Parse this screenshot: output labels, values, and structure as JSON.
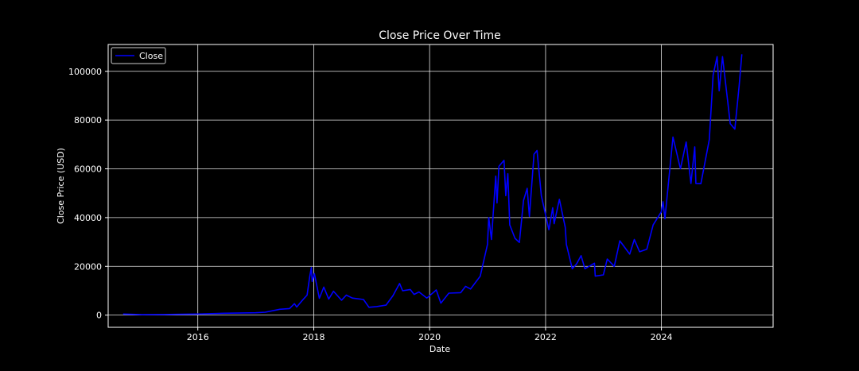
{
  "chart_data": {
    "type": "line",
    "title": "Close Price Over Time",
    "xlabel": "Date",
    "ylabel": "Close Price (USD)",
    "xlim": [
      "2014-06-15",
      "2025-12-05"
    ],
    "ylim": [
      -5000,
      111000
    ],
    "x_ticks": [
      "2016",
      "2018",
      "2020",
      "2022",
      "2024"
    ],
    "y_ticks": [
      0,
      20000,
      40000,
      60000,
      80000,
      100000
    ],
    "grid": true,
    "legend_placement": "top-left",
    "colors": {
      "background": "#000000",
      "line": "#0000ff",
      "text": "#ffffff",
      "grid": "#ffffff"
    },
    "series": [
      {
        "name": "Close",
        "points": [
          [
            "2014-09-17",
            457
          ],
          [
            "2015-01-14",
            178
          ],
          [
            "2015-06-01",
            230
          ],
          [
            "2015-11-04",
            400
          ],
          [
            "2016-01-01",
            430
          ],
          [
            "2016-06-18",
            760
          ],
          [
            "2016-12-31",
            960
          ],
          [
            "2017-03-01",
            1190
          ],
          [
            "2017-06-01",
            2400
          ],
          [
            "2017-08-01",
            2700
          ],
          [
            "2017-09-01",
            4700
          ],
          [
            "2017-09-15",
            3300
          ],
          [
            "2017-10-20",
            6000
          ],
          [
            "2017-11-20",
            8200
          ],
          [
            "2017-12-07",
            16000
          ],
          [
            "2017-12-17",
            19500
          ],
          [
            "2017-12-22",
            13800
          ],
          [
            "2018-01-05",
            17000
          ],
          [
            "2018-02-05",
            6900
          ],
          [
            "2018-03-05",
            11500
          ],
          [
            "2018-04-05",
            6600
          ],
          [
            "2018-05-05",
            9800
          ],
          [
            "2018-06-25",
            6100
          ],
          [
            "2018-07-25",
            8200
          ],
          [
            "2018-09-01",
            7000
          ],
          [
            "2018-11-10",
            6400
          ],
          [
            "2018-12-15",
            3200
          ],
          [
            "2019-02-01",
            3500
          ],
          [
            "2019-04-01",
            4100
          ],
          [
            "2019-05-15",
            8000
          ],
          [
            "2019-06-26",
            13000
          ],
          [
            "2019-07-15",
            10000
          ],
          [
            "2019-09-01",
            10500
          ],
          [
            "2019-09-25",
            8500
          ],
          [
            "2019-10-26",
            9500
          ],
          [
            "2019-12-15",
            7000
          ],
          [
            "2020-02-12",
            10300
          ],
          [
            "2020-03-12",
            4900
          ],
          [
            "2020-05-01",
            9000
          ],
          [
            "2020-07-15",
            9200
          ],
          [
            "2020-08-15",
            11800
          ],
          [
            "2020-09-15",
            10700
          ],
          [
            "2020-11-15",
            16000
          ],
          [
            "2020-12-31",
            29000
          ],
          [
            "2021-01-08",
            40000
          ],
          [
            "2021-01-25",
            31000
          ],
          [
            "2021-02-21",
            57000
          ],
          [
            "2021-03-01",
            46000
          ],
          [
            "2021-03-13",
            61000
          ],
          [
            "2021-04-14",
            63500
          ],
          [
            "2021-04-25",
            49000
          ],
          [
            "2021-05-08",
            58000
          ],
          [
            "2021-05-20",
            37000
          ],
          [
            "2021-06-22",
            31500
          ],
          [
            "2021-07-20",
            29800
          ],
          [
            "2021-08-15",
            47000
          ],
          [
            "2021-09-07",
            52000
          ],
          [
            "2021-09-21",
            40500
          ],
          [
            "2021-10-20",
            66000
          ],
          [
            "2021-11-08",
            67500
          ],
          [
            "2021-12-05",
            49000
          ],
          [
            "2022-01-22",
            35000
          ],
          [
            "2022-02-15",
            44000
          ],
          [
            "2022-02-24",
            37500
          ],
          [
            "2022-03-29",
            47500
          ],
          [
            "2022-05-05",
            36000
          ],
          [
            "2022-05-12",
            29000
          ],
          [
            "2022-06-18",
            19000
          ],
          [
            "2022-07-15",
            21000
          ],
          [
            "2022-08-13",
            24400
          ],
          [
            "2022-09-06",
            19000
          ],
          [
            "2022-11-05",
            21300
          ],
          [
            "2022-11-10",
            16000
          ],
          [
            "2022-12-31",
            16500
          ],
          [
            "2023-01-25",
            23000
          ],
          [
            "2023-03-10",
            20000
          ],
          [
            "2023-04-14",
            30500
          ],
          [
            "2023-06-15",
            25000
          ],
          [
            "2023-07-14",
            31000
          ],
          [
            "2023-08-17",
            26000
          ],
          [
            "2023-10-01",
            27000
          ],
          [
            "2023-11-10",
            37000
          ],
          [
            "2023-12-31",
            42300
          ],
          [
            "2024-01-11",
            46500
          ],
          [
            "2024-01-23",
            39500
          ],
          [
            "2024-03-14",
            73000
          ],
          [
            "2024-04-30",
            60000
          ],
          [
            "2024-06-05",
            71000
          ],
          [
            "2024-07-05",
            54000
          ],
          [
            "2024-07-29",
            69000
          ],
          [
            "2024-08-05",
            54000
          ],
          [
            "2024-09-06",
            53900
          ],
          [
            "2024-10-29",
            72000
          ],
          [
            "2024-11-22",
            98500
          ],
          [
            "2024-12-17",
            106000
          ],
          [
            "2024-12-30",
            92000
          ],
          [
            "2025-01-20",
            106000
          ],
          [
            "2025-02-25",
            86000
          ],
          [
            "2025-03-10",
            78500
          ],
          [
            "2025-04-08",
            76300
          ],
          [
            "2025-05-05",
            94000
          ],
          [
            "2025-05-22",
            107000
          ]
        ]
      }
    ]
  }
}
